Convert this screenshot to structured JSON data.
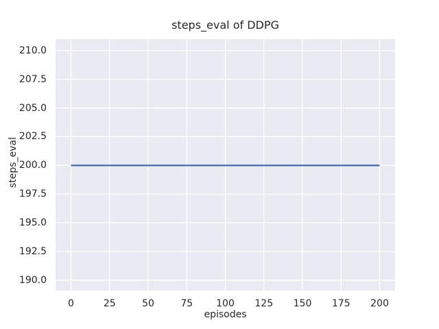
{
  "figure": {
    "background": "#ffffff"
  },
  "chart_data": {
    "type": "line",
    "title": "steps_eval of DDPG",
    "xlabel": "episodes",
    "ylabel": "steps_eval",
    "xlim": [
      -10,
      210
    ],
    "ylim": [
      189.1,
      211.0
    ],
    "xticks": [
      0,
      25,
      50,
      75,
      100,
      125,
      150,
      175,
      200
    ],
    "xtick_labels": [
      "0",
      "25",
      "50",
      "75",
      "100",
      "125",
      "150",
      "175",
      "200"
    ],
    "yticks": [
      190.0,
      192.5,
      195.0,
      197.5,
      200.0,
      202.5,
      205.0,
      207.5,
      210.0
    ],
    "ytick_labels": [
      "190.0",
      "192.5",
      "195.0",
      "197.5",
      "200.0",
      "202.5",
      "205.0",
      "207.5",
      "210.0"
    ],
    "grid": true,
    "legend_position": "none",
    "plot_background": "#eaeaf2",
    "grid_color": "#ffffff",
    "text_color": "#262626",
    "series": [
      {
        "name": "DDPG steps_eval",
        "color": "#4c72b0",
        "x": [
          0,
          200
        ],
        "y": [
          200.0,
          200.0
        ]
      }
    ]
  }
}
